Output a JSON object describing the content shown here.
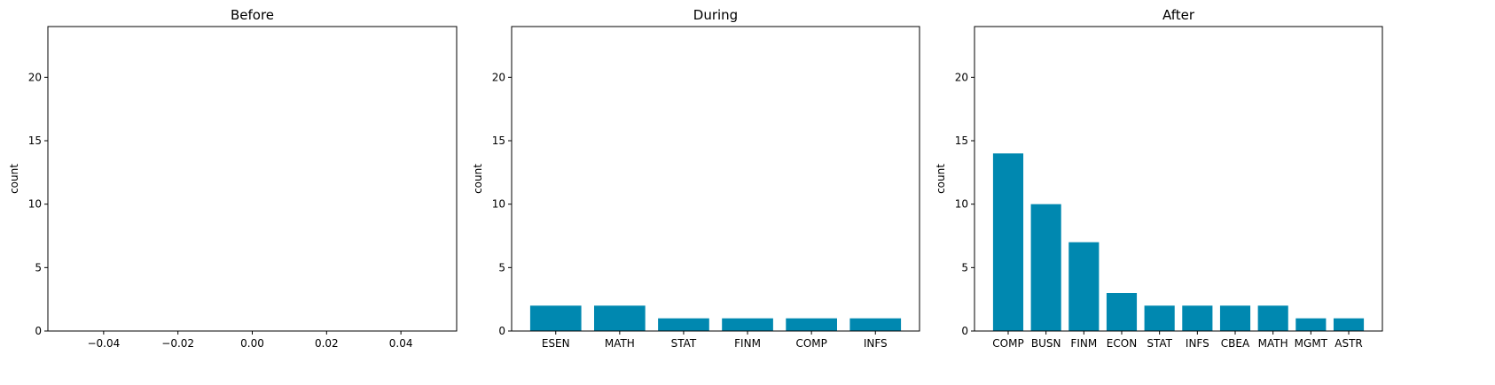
{
  "chart_data": [
    {
      "type": "bar",
      "title": "Before",
      "xlabel": "",
      "ylabel": "count",
      "categories": [],
      "values": [],
      "xlim": [
        -0.055,
        0.055
      ],
      "xticks": [
        -0.04,
        -0.02,
        0.0,
        0.02,
        0.04
      ],
      "xtick_labels": [
        "−0.04",
        "−0.02",
        "0.00",
        "0.02",
        "0.04"
      ],
      "ylim": [
        0,
        24
      ],
      "yticks": [
        0,
        5,
        10,
        15,
        20
      ],
      "grid": false,
      "color": "#0088b0"
    },
    {
      "type": "bar",
      "title": "During",
      "xlabel": "",
      "ylabel": "count",
      "categories": [
        "ESEN",
        "MATH",
        "STAT",
        "FINM",
        "COMP",
        "INFS"
      ],
      "values": [
        2,
        2,
        1,
        1,
        1,
        1
      ],
      "ylim": [
        0,
        24
      ],
      "yticks": [
        0,
        5,
        10,
        15,
        20
      ],
      "grid": false,
      "color": "#0088b0"
    },
    {
      "type": "bar",
      "title": "After",
      "xlabel": "",
      "ylabel": "count",
      "categories": [
        "COMP",
        "BUSN",
        "FINM",
        "ECON",
        "STAT",
        "INFS",
        "CBEA",
        "MATH",
        "MGMT",
        "ASTR"
      ],
      "values": [
        14,
        10,
        7,
        3,
        2,
        2,
        2,
        2,
        1,
        1
      ],
      "ylim": [
        0,
        24
      ],
      "yticks": [
        0,
        5,
        10,
        15,
        20
      ],
      "grid": false,
      "color": "#0088b0"
    }
  ]
}
